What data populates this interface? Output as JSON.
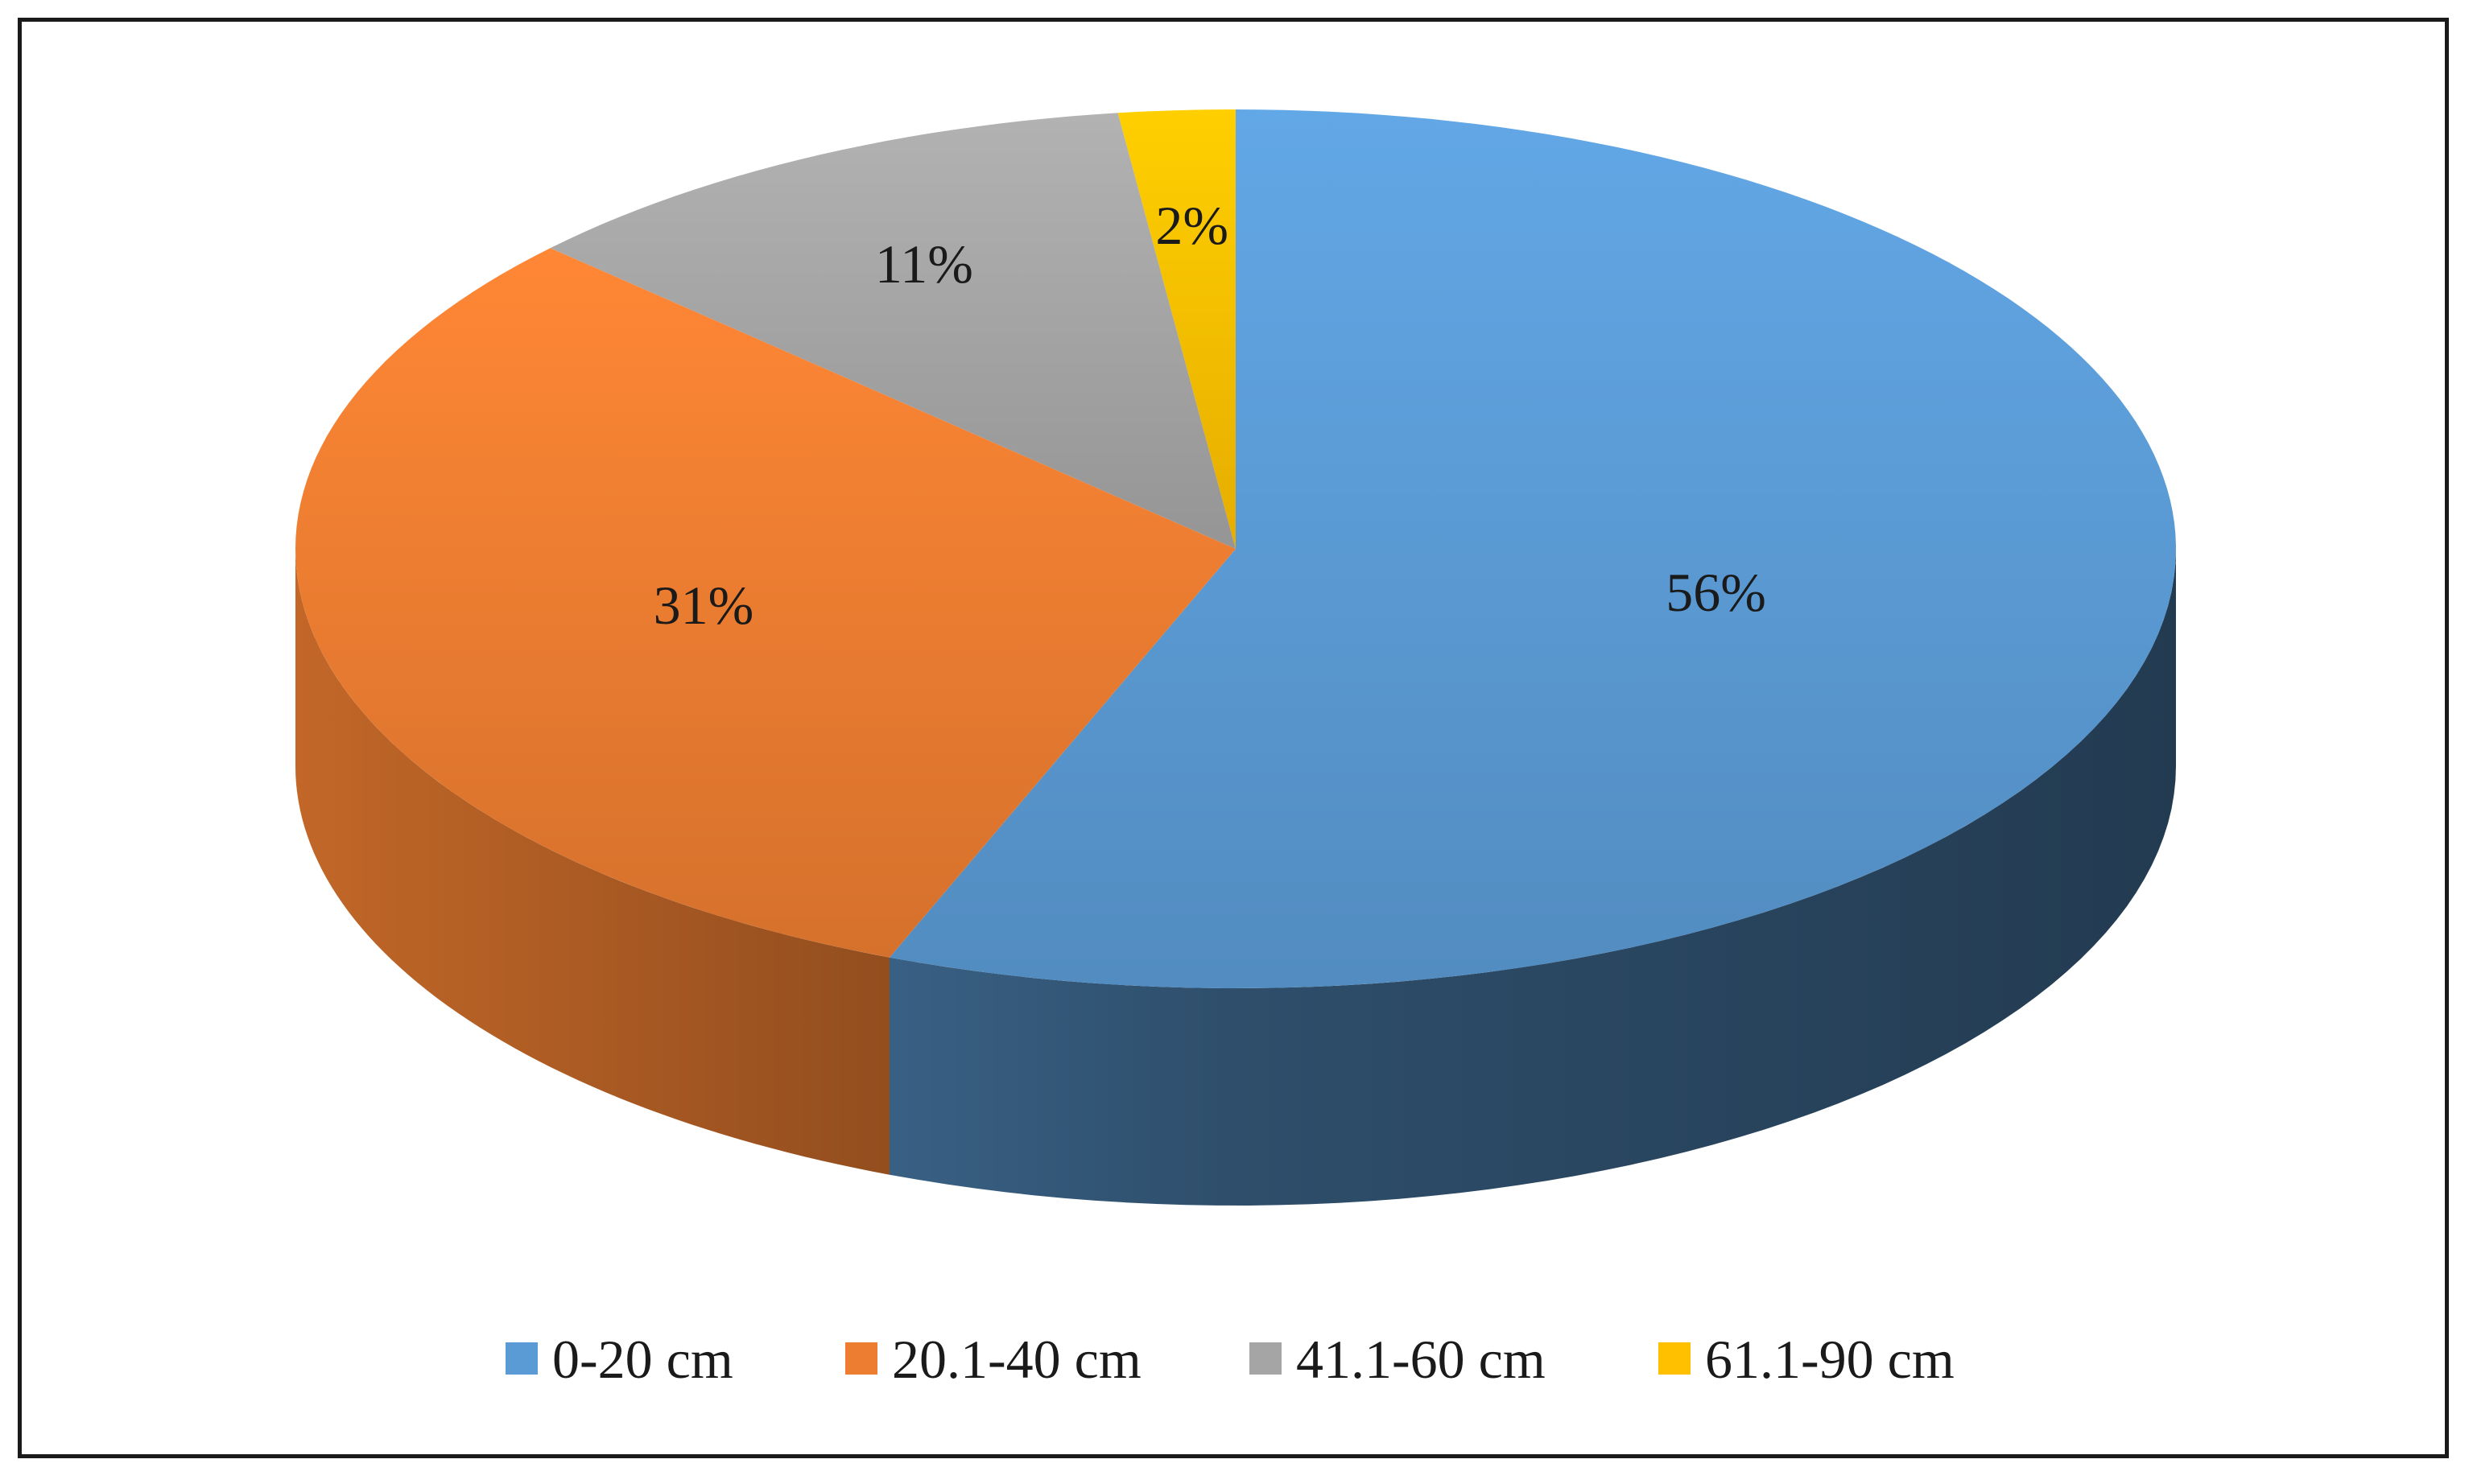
{
  "chart_data": {
    "type": "pie",
    "style": "3d",
    "title": "",
    "categories": [
      "0-20 cm",
      "20.1-40 cm",
      "41.1-60 cm",
      "61.1-90 cm"
    ],
    "values": [
      56,
      31,
      11,
      2
    ],
    "data_labels": [
      "56%",
      "31%",
      "11%",
      "2%"
    ],
    "colors": [
      "#5b9bd5",
      "#ed7d31",
      "#a5a5a5",
      "#ffc000"
    ],
    "legend_position": "bottom"
  }
}
